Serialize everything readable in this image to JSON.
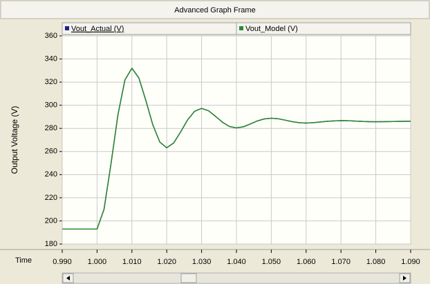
{
  "chart_data": {
    "type": "line",
    "title": "Advanced Graph Frame",
    "y_label": "Output Voltage (V)",
    "x_label": "Time",
    "x": [
      0.99,
      1.0,
      1.002,
      1.004,
      1.006,
      1.008,
      1.01,
      1.012,
      1.014,
      1.016,
      1.018,
      1.02,
      1.022,
      1.024,
      1.026,
      1.028,
      1.03,
      1.032,
      1.034,
      1.036,
      1.038,
      1.04,
      1.042,
      1.044,
      1.046,
      1.048,
      1.05,
      1.052,
      1.054,
      1.056,
      1.058,
      1.06,
      1.062,
      1.064,
      1.066,
      1.068,
      1.07,
      1.072,
      1.074,
      1.076,
      1.078,
      1.08,
      1.082,
      1.084,
      1.086,
      1.088,
      1.09
    ],
    "series": [
      {
        "name": "Vout_Actual (V)",
        "color": "#1f1f8f",
        "values": [
          193,
          193,
          210.0,
          249.4,
          291.9,
          321.9,
          332.0,
          323.6,
          304.1,
          283.1,
          268.2,
          263.2,
          267.4,
          277.0,
          287.4,
          294.8,
          297.3,
          295.2,
          290.4,
          285.3,
          281.6,
          280.4,
          281.4,
          283.8,
          286.4,
          288.2,
          288.8,
          288.3,
          287.1,
          285.8,
          284.9,
          284.6,
          284.9,
          285.5,
          286.1,
          286.5,
          286.7,
          286.6,
          286.3,
          286.0,
          285.8,
          285.7,
          285.8,
          285.9,
          286.0,
          286.1,
          286.2
        ]
      },
      {
        "name": "Vout_Model (V)",
        "color": "#2e8b2e",
        "values": [
          193,
          193,
          210.0,
          249.4,
          291.9,
          321.9,
          332.0,
          323.6,
          304.1,
          283.1,
          268.2,
          263.2,
          267.4,
          277.0,
          287.4,
          294.8,
          297.3,
          295.2,
          290.4,
          285.3,
          281.6,
          280.4,
          281.4,
          283.8,
          286.4,
          288.2,
          288.8,
          288.3,
          287.1,
          285.8,
          284.9,
          284.6,
          284.9,
          285.5,
          286.1,
          286.5,
          286.7,
          286.6,
          286.3,
          286.0,
          285.8,
          285.7,
          285.8,
          285.9,
          286.0,
          286.1,
          286.2
        ]
      }
    ],
    "xlim": [
      0.99,
      1.09
    ],
    "xticks": [
      {
        "value": 0.99,
        "label": "0.990"
      },
      {
        "value": 1.0,
        "label": "1.000"
      },
      {
        "value": 1.01,
        "label": "1.010"
      },
      {
        "value": 1.02,
        "label": "1.020"
      },
      {
        "value": 1.03,
        "label": "1.030"
      },
      {
        "value": 1.04,
        "label": "1.040"
      },
      {
        "value": 1.05,
        "label": "1.050"
      },
      {
        "value": 1.06,
        "label": "1.060"
      },
      {
        "value": 1.07,
        "label": "1.070"
      },
      {
        "value": 1.08,
        "label": "1.080"
      },
      {
        "value": 1.09,
        "label": "1.090"
      }
    ],
    "ylim": [
      180,
      360
    ],
    "yticks": [
      180,
      200,
      220,
      240,
      260,
      280,
      300,
      320,
      340,
      360
    ],
    "grid": true
  }
}
